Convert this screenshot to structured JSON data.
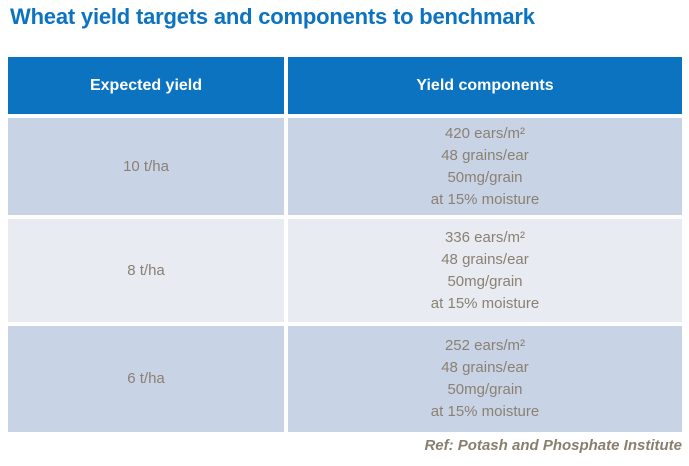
{
  "title": "Wheat yield targets and components to benchmark",
  "table": {
    "headers": [
      "Expected yield",
      "Yield components"
    ],
    "rows": [
      {
        "yield": "10 t/ha",
        "components": [
          "420 ears/m²",
          "48 grains/ear",
          "50mg/grain",
          "at 15% moisture"
        ]
      },
      {
        "yield": "8 t/ha",
        "components": [
          "336 ears/m²",
          "48 grains/ear",
          "50mg/grain",
          "at 15% moisture"
        ]
      },
      {
        "yield": "6 t/ha",
        "components": [
          "252 ears/m²",
          "48 grains/ear",
          "50mg/grain",
          "at 15% moisture"
        ]
      }
    ]
  },
  "footer": {
    "ref": "Ref: Potash and Phosphate Institute"
  },
  "colors": {
    "title_blue": "#0c73c0",
    "header_bg": "#0c73c0",
    "header_text": "#ffffff",
    "row_dark_bg": "#c9d3e6",
    "row_light_bg": "#e8ebf2",
    "body_text": "#8b8173",
    "footer_text": "#8a7f6f"
  }
}
